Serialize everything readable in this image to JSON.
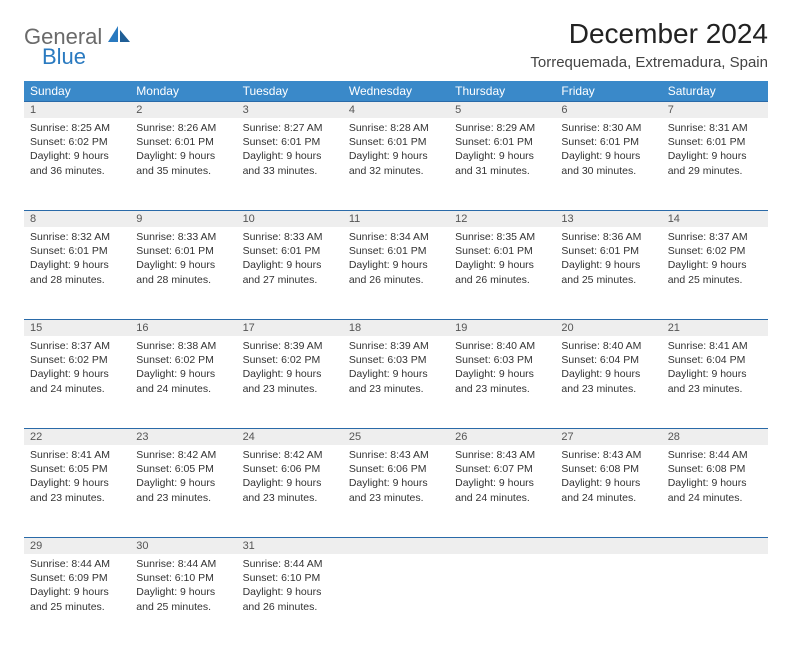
{
  "brand": {
    "general": "General",
    "blue": "Blue"
  },
  "title": "December 2024",
  "location": "Torrequemada, Extremadura, Spain",
  "colors": {
    "header_bg": "#3a89c9",
    "header_text": "#ffffff",
    "daynum_bg": "#eeeeee",
    "daynum_border": "#2a6aa8",
    "logo_gray": "#6a6a6a",
    "logo_blue": "#2a7ac0"
  },
  "weekdays": [
    "Sunday",
    "Monday",
    "Tuesday",
    "Wednesday",
    "Thursday",
    "Friday",
    "Saturday"
  ],
  "weeks": [
    [
      {
        "n": "1",
        "sr": "Sunrise: 8:25 AM",
        "ss": "Sunset: 6:02 PM",
        "dl": "Daylight: 9 hours and 36 minutes."
      },
      {
        "n": "2",
        "sr": "Sunrise: 8:26 AM",
        "ss": "Sunset: 6:01 PM",
        "dl": "Daylight: 9 hours and 35 minutes."
      },
      {
        "n": "3",
        "sr": "Sunrise: 8:27 AM",
        "ss": "Sunset: 6:01 PM",
        "dl": "Daylight: 9 hours and 33 minutes."
      },
      {
        "n": "4",
        "sr": "Sunrise: 8:28 AM",
        "ss": "Sunset: 6:01 PM",
        "dl": "Daylight: 9 hours and 32 minutes."
      },
      {
        "n": "5",
        "sr": "Sunrise: 8:29 AM",
        "ss": "Sunset: 6:01 PM",
        "dl": "Daylight: 9 hours and 31 minutes."
      },
      {
        "n": "6",
        "sr": "Sunrise: 8:30 AM",
        "ss": "Sunset: 6:01 PM",
        "dl": "Daylight: 9 hours and 30 minutes."
      },
      {
        "n": "7",
        "sr": "Sunrise: 8:31 AM",
        "ss": "Sunset: 6:01 PM",
        "dl": "Daylight: 9 hours and 29 minutes."
      }
    ],
    [
      {
        "n": "8",
        "sr": "Sunrise: 8:32 AM",
        "ss": "Sunset: 6:01 PM",
        "dl": "Daylight: 9 hours and 28 minutes."
      },
      {
        "n": "9",
        "sr": "Sunrise: 8:33 AM",
        "ss": "Sunset: 6:01 PM",
        "dl": "Daylight: 9 hours and 28 minutes."
      },
      {
        "n": "10",
        "sr": "Sunrise: 8:33 AM",
        "ss": "Sunset: 6:01 PM",
        "dl": "Daylight: 9 hours and 27 minutes."
      },
      {
        "n": "11",
        "sr": "Sunrise: 8:34 AM",
        "ss": "Sunset: 6:01 PM",
        "dl": "Daylight: 9 hours and 26 minutes."
      },
      {
        "n": "12",
        "sr": "Sunrise: 8:35 AM",
        "ss": "Sunset: 6:01 PM",
        "dl": "Daylight: 9 hours and 26 minutes."
      },
      {
        "n": "13",
        "sr": "Sunrise: 8:36 AM",
        "ss": "Sunset: 6:01 PM",
        "dl": "Daylight: 9 hours and 25 minutes."
      },
      {
        "n": "14",
        "sr": "Sunrise: 8:37 AM",
        "ss": "Sunset: 6:02 PM",
        "dl": "Daylight: 9 hours and 25 minutes."
      }
    ],
    [
      {
        "n": "15",
        "sr": "Sunrise: 8:37 AM",
        "ss": "Sunset: 6:02 PM",
        "dl": "Daylight: 9 hours and 24 minutes."
      },
      {
        "n": "16",
        "sr": "Sunrise: 8:38 AM",
        "ss": "Sunset: 6:02 PM",
        "dl": "Daylight: 9 hours and 24 minutes."
      },
      {
        "n": "17",
        "sr": "Sunrise: 8:39 AM",
        "ss": "Sunset: 6:02 PM",
        "dl": "Daylight: 9 hours and 23 minutes."
      },
      {
        "n": "18",
        "sr": "Sunrise: 8:39 AM",
        "ss": "Sunset: 6:03 PM",
        "dl": "Daylight: 9 hours and 23 minutes."
      },
      {
        "n": "19",
        "sr": "Sunrise: 8:40 AM",
        "ss": "Sunset: 6:03 PM",
        "dl": "Daylight: 9 hours and 23 minutes."
      },
      {
        "n": "20",
        "sr": "Sunrise: 8:40 AM",
        "ss": "Sunset: 6:04 PM",
        "dl": "Daylight: 9 hours and 23 minutes."
      },
      {
        "n": "21",
        "sr": "Sunrise: 8:41 AM",
        "ss": "Sunset: 6:04 PM",
        "dl": "Daylight: 9 hours and 23 minutes."
      }
    ],
    [
      {
        "n": "22",
        "sr": "Sunrise: 8:41 AM",
        "ss": "Sunset: 6:05 PM",
        "dl": "Daylight: 9 hours and 23 minutes."
      },
      {
        "n": "23",
        "sr": "Sunrise: 8:42 AM",
        "ss": "Sunset: 6:05 PM",
        "dl": "Daylight: 9 hours and 23 minutes."
      },
      {
        "n": "24",
        "sr": "Sunrise: 8:42 AM",
        "ss": "Sunset: 6:06 PM",
        "dl": "Daylight: 9 hours and 23 minutes."
      },
      {
        "n": "25",
        "sr": "Sunrise: 8:43 AM",
        "ss": "Sunset: 6:06 PM",
        "dl": "Daylight: 9 hours and 23 minutes."
      },
      {
        "n": "26",
        "sr": "Sunrise: 8:43 AM",
        "ss": "Sunset: 6:07 PM",
        "dl": "Daylight: 9 hours and 24 minutes."
      },
      {
        "n": "27",
        "sr": "Sunrise: 8:43 AM",
        "ss": "Sunset: 6:08 PM",
        "dl": "Daylight: 9 hours and 24 minutes."
      },
      {
        "n": "28",
        "sr": "Sunrise: 8:44 AM",
        "ss": "Sunset: 6:08 PM",
        "dl": "Daylight: 9 hours and 24 minutes."
      }
    ],
    [
      {
        "n": "29",
        "sr": "Sunrise: 8:44 AM",
        "ss": "Sunset: 6:09 PM",
        "dl": "Daylight: 9 hours and 25 minutes."
      },
      {
        "n": "30",
        "sr": "Sunrise: 8:44 AM",
        "ss": "Sunset: 6:10 PM",
        "dl": "Daylight: 9 hours and 25 minutes."
      },
      {
        "n": "31",
        "sr": "Sunrise: 8:44 AM",
        "ss": "Sunset: 6:10 PM",
        "dl": "Daylight: 9 hours and 26 minutes."
      },
      null,
      null,
      null,
      null
    ]
  ]
}
